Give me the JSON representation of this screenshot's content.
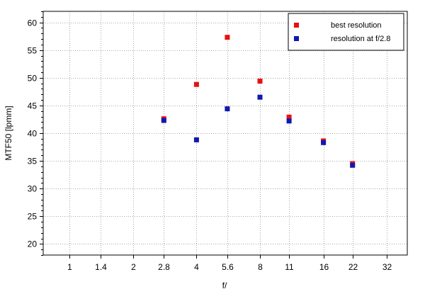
{
  "chart_data": {
    "type": "scatter",
    "xlabel": "f/",
    "ylabel": "MTF50 [lpmm]",
    "x_scale": "log2",
    "xlim": [
      0.75,
      40
    ],
    "ylim": [
      18,
      62
    ],
    "x_ticks": [
      {
        "value": 1,
        "label": "1"
      },
      {
        "value": 1.4,
        "label": "1.4"
      },
      {
        "value": 2,
        "label": "2"
      },
      {
        "value": 2.8,
        "label": "2.8"
      },
      {
        "value": 4,
        "label": "4"
      },
      {
        "value": 5.6,
        "label": "5.6"
      },
      {
        "value": 8,
        "label": "8"
      },
      {
        "value": 11,
        "label": "11"
      },
      {
        "value": 16,
        "label": "16"
      },
      {
        "value": 22,
        "label": "22"
      },
      {
        "value": 32,
        "label": "32"
      }
    ],
    "y_major_ticks": [
      20,
      25,
      30,
      35,
      40,
      45,
      50,
      55,
      60
    ],
    "y_minor_step": 1,
    "grid": true,
    "legend_position": "top-right",
    "series": [
      {
        "name": "best resolution",
        "color": "#e81010",
        "points": [
          {
            "x": 2.8,
            "y": 42.6
          },
          {
            "x": 4,
            "y": 48.8
          },
          {
            "x": 5.6,
            "y": 57.3
          },
          {
            "x": 8,
            "y": 49.4
          },
          {
            "x": 11,
            "y": 42.9
          },
          {
            "x": 16,
            "y": 38.6
          },
          {
            "x": 22,
            "y": 34.5
          }
        ]
      },
      {
        "name": "resolution at f/2.8",
        "color": "#1018b0",
        "points": [
          {
            "x": 2.8,
            "y": 42.3
          },
          {
            "x": 4,
            "y": 38.8
          },
          {
            "x": 5.6,
            "y": 44.4
          },
          {
            "x": 8,
            "y": 46.5
          },
          {
            "x": 11,
            "y": 42.2
          },
          {
            "x": 16,
            "y": 38.3
          },
          {
            "x": 22,
            "y": 34.2
          }
        ]
      }
    ]
  }
}
